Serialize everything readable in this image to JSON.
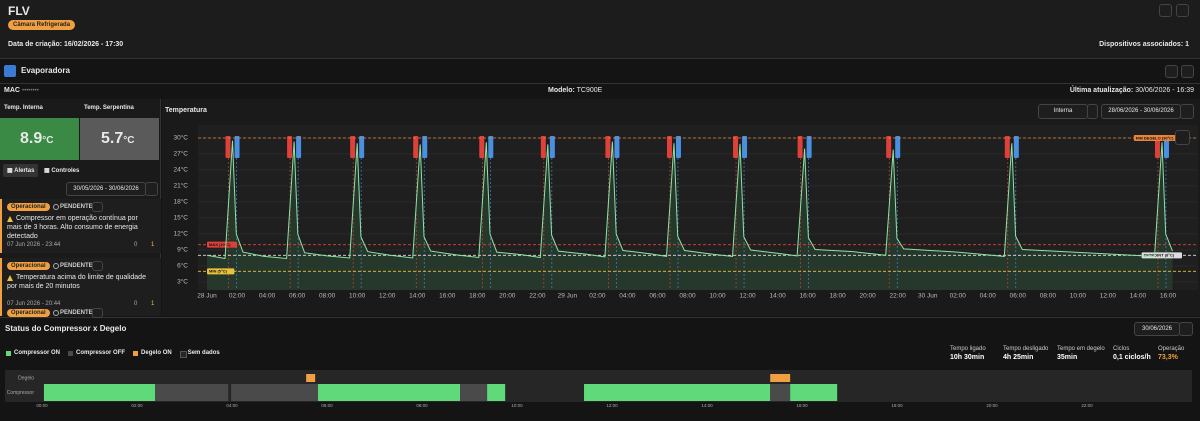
{
  "header": {
    "title": "FLV",
    "badge": "Câmara Refrigerada",
    "created": "Data de criação: 16/02/2026 - 17:30",
    "devices": "Dispositivos associados: 1"
  },
  "device": {
    "name": "Evaporadora",
    "mac_label": "MAC",
    "mac": "••••••••",
    "model_label": "Modelo:",
    "model": "TC900E",
    "updated_label": "Última atualização:",
    "updated": "30/06/2026 - 16:39"
  },
  "readings": [
    {
      "label": "Temp. Interna",
      "value": "8.9",
      "unit": "°C"
    },
    {
      "label": "Temp. Serpentina",
      "value": "5.7",
      "unit": "°C"
    }
  ],
  "tabs": [
    "Alertas",
    "Controles"
  ],
  "alerts_range": "30/05/2026 - 30/06/2026",
  "alerts": [
    {
      "status": "Operacional",
      "state": "PENDENTE",
      "message": "Compressor em operação contínua por mais de 3 horas. Alto consumo de energia detectado",
      "time": "07 Jun 2026 - 23:44",
      "comments": 0,
      "count": 1
    },
    {
      "status": "Operacional",
      "state": "PENDENTE",
      "message": "Temperatura acima do limite de qualidade por mais de 20 minutos",
      "time": "07 Jun 2026 - 20:44",
      "comments": 0,
      "count": 1
    },
    {
      "status": "Operacional",
      "state": "PENDENTE"
    }
  ],
  "chart_data": [
    {
      "type": "line",
      "title": "Temperatura",
      "selector": "Interna",
      "range": "28/06/2026 - 30/06/2026",
      "color": "#8fe3a4",
      "grid": true,
      "x": [
        0,
        1.2,
        1.7,
        1.95,
        2.4,
        3.8,
        5.3,
        5.8,
        6.05,
        6.5,
        8.0,
        9.5,
        10.0,
        10.25,
        10.7,
        12.2,
        13.7,
        14.2,
        14.45,
        14.9,
        16.8,
        18.1,
        18.6,
        18.85,
        19.3,
        21.0,
        22.2,
        22.7,
        22.95,
        23.4,
        25.3,
        26.5,
        27.0,
        27.25,
        27.7,
        29.5,
        30.6,
        31.1,
        31.35,
        31.8,
        33.7,
        35.0,
        35.5,
        35.75,
        36.2,
        38.0,
        39.3,
        39.8,
        40.05,
        40.5,
        43.0,
        45.2,
        45.7,
        45.95,
        46.4,
        50.0,
        53.1,
        53.6,
        53.85,
        54.3,
        58.5,
        63.1,
        63.6,
        63.85,
        64.3
      ],
      "values": [
        8.0,
        7.4,
        29.5,
        12,
        8.6,
        7.8,
        7.4,
        29.3,
        12,
        8.5,
        7.9,
        7.5,
        29.0,
        11.5,
        8.7,
        8.0,
        7.5,
        28.8,
        11.5,
        8.8,
        8.0,
        7.6,
        29.2,
        12,
        8.6,
        8.1,
        7.6,
        28.8,
        11.8,
        8.8,
        8.2,
        7.7,
        29.3,
        12,
        8.9,
        8.3,
        7.8,
        29.0,
        11.6,
        8.9,
        8.2,
        7.8,
        28.9,
        11.5,
        9.0,
        8.4,
        7.9,
        28.0,
        11.3,
        9.1,
        8.7,
        8.0,
        27.8,
        11.2,
        9.2,
        8.6,
        7.8,
        29.0,
        11.6,
        9.1,
        8.5,
        7.8,
        29.2,
        12,
        8.8
      ],
      "events": [
        1.7,
        5.8,
        10.0,
        14.2,
        18.6,
        22.7,
        27.0,
        31.1,
        35.5,
        39.8,
        45.7,
        53.6,
        63.6
      ],
      "thresholds": [
        {
          "value": 30,
          "label": "FIM DEGELO (30°C)",
          "color": "#e8833a",
          "position": "right"
        },
        {
          "value": 10,
          "label": "MAX (10°C)",
          "color": "#e0403a",
          "position": "left"
        },
        {
          "value": 8,
          "label": "SETPOINT (8°C)",
          "color": "#dddddd",
          "position": "right"
        },
        {
          "value": 5,
          "label": "MIN (5°C)",
          "color": "#e8c23a",
          "position": "left"
        }
      ],
      "xlim": [
        -0.6,
        66
      ],
      "ylim": [
        1.5,
        31.5
      ],
      "yticks": [
        {
          "value": 3,
          "label": "3°C"
        },
        {
          "value": 6,
          "label": "6°C"
        },
        {
          "value": 9,
          "label": "9°C"
        },
        {
          "value": 12,
          "label": "12°C"
        },
        {
          "value": 15,
          "label": "15°C"
        },
        {
          "value": 18,
          "label": "18°C"
        },
        {
          "value": 21,
          "label": "21°C"
        },
        {
          "value": 24,
          "label": "24°C"
        },
        {
          "value": 27,
          "label": "27°C"
        },
        {
          "value": 30,
          "label": "30°C"
        }
      ],
      "xticks": [
        {
          "value": 0,
          "label": "28 Jun"
        },
        {
          "value": 2,
          "label": "02:00"
        },
        {
          "value": 4,
          "label": "04:00"
        },
        {
          "value": 6,
          "label": "06:00"
        },
        {
          "value": 8,
          "label": "08:00"
        },
        {
          "value": 10,
          "label": "10:00"
        },
        {
          "value": 12,
          "label": "12:00"
        },
        {
          "value": 14,
          "label": "14:00"
        },
        {
          "value": 16,
          "label": "16:00"
        },
        {
          "value": 18,
          "label": "18:00"
        },
        {
          "value": 20,
          "label": "20:00"
        },
        {
          "value": 22,
          "label": "22:00"
        },
        {
          "value": 24,
          "label": "29 Jun"
        },
        {
          "value": 26,
          "label": "02:00"
        },
        {
          "value": 28,
          "label": "04:00"
        },
        {
          "value": 30,
          "label": "06:00"
        },
        {
          "value": 32,
          "label": "08:00"
        },
        {
          "value": 34,
          "label": "10:00"
        },
        {
          "value": 36,
          "label": "12:00"
        },
        {
          "value": 38,
          "label": "14:00"
        },
        {
          "value": 40,
          "label": "16:00"
        },
        {
          "value": 42,
          "label": "18:00"
        },
        {
          "value": 44,
          "label": "20:00"
        },
        {
          "value": 46,
          "label": "22:00"
        },
        {
          "value": 48,
          "label": "30 Jun"
        },
        {
          "value": 50,
          "label": "02:00"
        },
        {
          "value": 52,
          "label": "04:00"
        },
        {
          "value": 54,
          "label": "06:00"
        },
        {
          "value": 56,
          "label": "08:00"
        },
        {
          "value": 58,
          "label": "10:00"
        },
        {
          "value": 60,
          "label": "12:00"
        },
        {
          "value": 62,
          "label": "14:00"
        },
        {
          "value": 64,
          "label": "16:00"
        }
      ]
    },
    {
      "type": "timeline",
      "title": "Status do Compressor x Degelo",
      "date": "30/06/2026",
      "legend": [
        {
          "name": "Compressor ON",
          "color": "#5fd97a"
        },
        {
          "name": "Compressor OFF",
          "color": "#4a4a4a"
        },
        {
          "name": "Degelo ON",
          "color": "#f0a040"
        },
        {
          "name": "Sem dados",
          "color": "#262626"
        }
      ],
      "stats": [
        {
          "label": "Tempo ligado",
          "value": "10h 30min"
        },
        {
          "label": "Tempo desligado",
          "value": "4h 25min"
        },
        {
          "label": "Tempo em degelo",
          "value": "35min"
        },
        {
          "label": "Ciclos",
          "value": "0,1 ciclos/h"
        },
        {
          "label": "Operação",
          "value": "73,3%"
        }
      ],
      "rows": [
        "Degelo",
        "Compressor"
      ],
      "compressor": [
        {
          "start": 0.04,
          "end": 2.38,
          "on": true
        },
        {
          "start": 2.38,
          "end": 3.92,
          "on": false
        },
        {
          "start": 3.98,
          "end": 5.81,
          "on": false
        },
        {
          "start": 5.81,
          "end": 8.8,
          "on": true
        },
        {
          "start": 8.8,
          "end": 9.37,
          "on": false
        },
        {
          "start": 9.37,
          "end": 9.75,
          "on": true
        },
        {
          "start": 11.41,
          "end": 15.33,
          "on": true
        },
        {
          "start": 15.33,
          "end": 15.75,
          "on": false
        },
        {
          "start": 15.75,
          "end": 16.74,
          "on": true
        }
      ],
      "defrost": [
        {
          "start": 5.56,
          "end": 5.75
        },
        {
          "start": 15.33,
          "end": 15.75
        }
      ],
      "xlim": [
        -0.78,
        24.21
      ],
      "xticks": [
        {
          "value": 0,
          "label": "00:00"
        },
        {
          "value": 2,
          "label": "02:00"
        },
        {
          "value": 4,
          "label": "04:00"
        },
        {
          "value": 6,
          "label": "06:00"
        },
        {
          "value": 8,
          "label": "08:00"
        },
        {
          "value": 10,
          "label": "10:00"
        },
        {
          "value": 12,
          "label": "12:00"
        },
        {
          "value": 14,
          "label": "14:00"
        },
        {
          "value": 16,
          "label": "16:00"
        },
        {
          "value": 18,
          "label": "18:00"
        },
        {
          "value": 20,
          "label": "20:00"
        },
        {
          "value": 22,
          "label": "22:00"
        }
      ]
    }
  ]
}
